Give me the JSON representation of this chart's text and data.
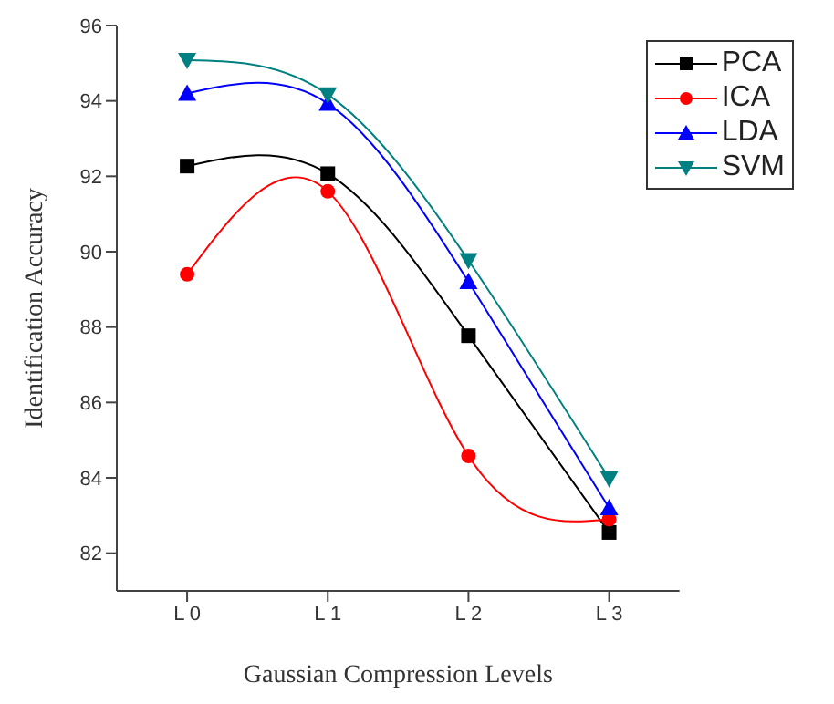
{
  "chart_data": {
    "type": "line",
    "xlabel": "Gaussian Compression Levels",
    "ylabel": "Identification Accuracy",
    "categories": [
      "L 0",
      "L 1",
      "L 2",
      "L 3"
    ],
    "series": [
      {
        "name": "PCA",
        "color": "#000000",
        "marker": "square",
        "values": [
          92.27,
          92.07,
          87.77,
          82.55
        ]
      },
      {
        "name": "ICA",
        "color": "#ff0000",
        "marker": "circle",
        "values": [
          89.4,
          91.6,
          84.58,
          82.9
        ]
      },
      {
        "name": "LDA",
        "color": "#0000ff",
        "marker": "triangle",
        "values": [
          94.2,
          93.93,
          89.2,
          83.2
        ]
      },
      {
        "name": "SVM",
        "color": "#008080",
        "marker": "triangle_down",
        "values": [
          95.08,
          94.17,
          89.77,
          83.98
        ]
      }
    ],
    "ylim": [
      81,
      96
    ],
    "yticks": [
      82,
      84,
      86,
      88,
      90,
      92,
      94,
      96
    ],
    "grid": false,
    "legend": "top right"
  }
}
